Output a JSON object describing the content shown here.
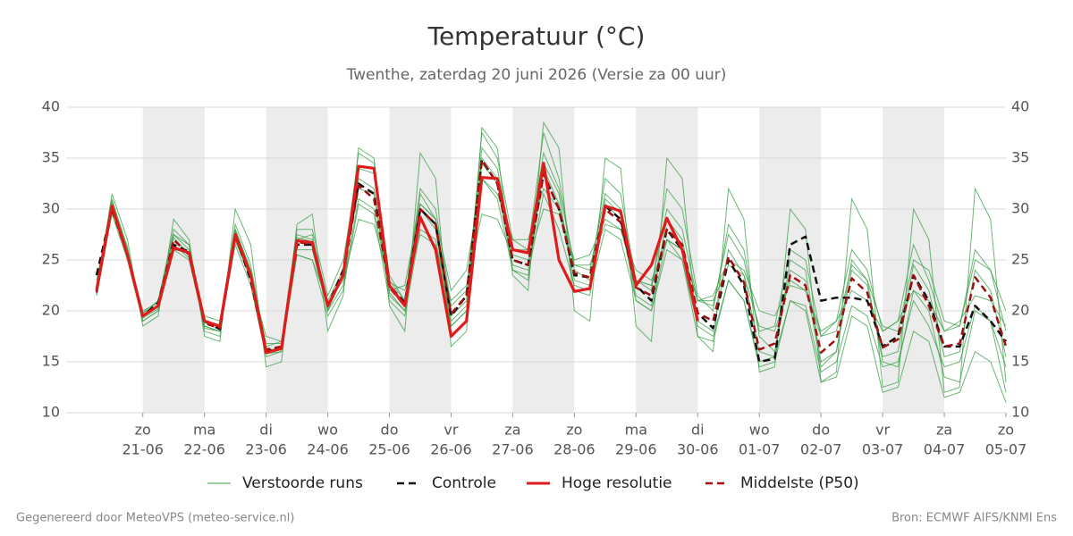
{
  "chart_data": {
    "type": "line",
    "title": "Temperatuur (°C)",
    "subtitle": "Twenthe, zaterdag 20 juni 2026 (Versie za 00 uur)",
    "categories": [
      null,
      null,
      null,
      {
        "day": "zo",
        "date": "21-06"
      },
      null,
      null,
      null,
      {
        "day": "ma",
        "date": "22-06"
      },
      null,
      null,
      null,
      {
        "day": "di",
        "date": "23-06"
      },
      null,
      null,
      null,
      {
        "day": "wo",
        "date": "24-06"
      },
      null,
      null,
      null,
      {
        "day": "do",
        "date": "25-06"
      },
      null,
      null,
      null,
      {
        "day": "vr",
        "date": "26-06"
      },
      null,
      null,
      null,
      {
        "day": "za",
        "date": "27-06"
      },
      null,
      null,
      null,
      {
        "day": "zo",
        "date": "28-06"
      },
      null,
      null,
      null,
      {
        "day": "ma",
        "date": "29-06"
      },
      null,
      null,
      null,
      {
        "day": "di",
        "date": "30-06"
      },
      null,
      null,
      null,
      {
        "day": "wo",
        "date": "01-07"
      },
      null,
      null,
      null,
      {
        "day": "do",
        "date": "02-07"
      },
      null,
      null,
      null,
      {
        "day": "vr",
        "date": "03-07"
      },
      null,
      null,
      null,
      {
        "day": "za",
        "date": "04-07"
      },
      null,
      null,
      null,
      {
        "day": "zo",
        "date": "05-07"
      }
    ],
    "ylim": [
      10,
      40
    ],
    "yticks": [
      10,
      15,
      20,
      25,
      30,
      35,
      40
    ],
    "grid": true,
    "ensemble": {
      "name": "Verstoorde runs",
      "color": "#3a9d48",
      "runs": [
        [
          22.5,
          31,
          26,
          19.8,
          21,
          28,
          26.5,
          19,
          18.5,
          28.5,
          24.5,
          16.5,
          17,
          28,
          28,
          21.5,
          25,
          34,
          33.5,
          23,
          21,
          32,
          30,
          20.5,
          22,
          36,
          34,
          26,
          26,
          35.5,
          32,
          24.5,
          24,
          31.5,
          30,
          23,
          22.5,
          30,
          28,
          21,
          20.5,
          27.5,
          25,
          18,
          18.5,
          26,
          25,
          17.5,
          19,
          26,
          24,
          18,
          19,
          26.5,
          23,
          18,
          18.5,
          26,
          24,
          18
        ],
        [
          21.5,
          29.5,
          25,
          19,
          20,
          26,
          25,
          18.5,
          18,
          26.5,
          22.5,
          15.5,
          16,
          25.5,
          25,
          19.5,
          22,
          30.5,
          29.5,
          21,
          19.5,
          28,
          27,
          18.5,
          20,
          33,
          31,
          24,
          23.5,
          31.5,
          28,
          22.5,
          22,
          28,
          27,
          21,
          20,
          26,
          25,
          18.5,
          17.5,
          23,
          21,
          15,
          15.5,
          21,
          20.5,
          14,
          15,
          20.5,
          19.5,
          14.5,
          15,
          21,
          18.5,
          14.5,
          15,
          20.5,
          19,
          14.5
        ],
        [
          23,
          30.5,
          26,
          19.5,
          21,
          27.5,
          26,
          18.5,
          18,
          28,
          24,
          16,
          16.5,
          27.5,
          27,
          21,
          24,
          35.5,
          34.5,
          23.5,
          21,
          31.5,
          29,
          19,
          20.5,
          37.5,
          35,
          27,
          26,
          37.5,
          33,
          24,
          23,
          33,
          31.5,
          23,
          22,
          32,
          30,
          21.5,
          20,
          28.5,
          26,
          17.5,
          16,
          24,
          23,
          14.5,
          16,
          25,
          23,
          15,
          14.5,
          22,
          20,
          13.5,
          13,
          20,
          19,
          12
        ],
        [
          22,
          30,
          25.3,
          20,
          20.8,
          26.5,
          25.2,
          19.5,
          19,
          27,
          23,
          17.5,
          17,
          26,
          26,
          20,
          22.5,
          31,
          30,
          22,
          22.5,
          30.5,
          29,
          22,
          24,
          33,
          31.5,
          27,
          27,
          32,
          30,
          25,
          25.5,
          29,
          28,
          24,
          23,
          27,
          26,
          21,
          21.5,
          25,
          24,
          20,
          19.5,
          22.5,
          22,
          18,
          19,
          22,
          21,
          18,
          19,
          22,
          21,
          18,
          19,
          21.5,
          21,
          18.5
        ],
        [
          21.8,
          31.5,
          27,
          18.5,
          19.5,
          29,
          27,
          17.5,
          17,
          30,
          26.5,
          14.5,
          15,
          28.5,
          29.5,
          18,
          21.5,
          36,
          35,
          20.5,
          18,
          35.5,
          33,
          16.5,
          18,
          38,
          36,
          23.5,
          22,
          38.5,
          36,
          20,
          19,
          35,
          34,
          18.5,
          17,
          35,
          33,
          17.5,
          16,
          32,
          29,
          14,
          14.5,
          30,
          28,
          13,
          14,
          31,
          28,
          12.5,
          13,
          30,
          27,
          12,
          12.5,
          32,
          29,
          13
        ],
        [
          22.3,
          29.8,
          25.5,
          19.8,
          20.5,
          26,
          25.8,
          18.8,
          18.6,
          26.8,
          23.8,
          16.8,
          16.8,
          25.5,
          25,
          20.8,
          23,
          29,
          28.5,
          22.8,
          22,
          27.5,
          26.5,
          21,
          22.5,
          29.5,
          29,
          25.5,
          25,
          30,
          29.5,
          24.5,
          24.5,
          28.5,
          28,
          23,
          22.5,
          27,
          26,
          21,
          21,
          24.5,
          23.5,
          18.5,
          18,
          23,
          22,
          17.5,
          18,
          24.5,
          23,
          18.5,
          18,
          25,
          24,
          19,
          18.5,
          25,
          24,
          20
        ],
        [
          22,
          30.3,
          25.8,
          19.3,
          20.2,
          27.2,
          25.6,
          18.3,
          18,
          27.8,
          23.3,
          15.8,
          16.2,
          27.2,
          26.8,
          20.2,
          23.8,
          33,
          32,
          21.8,
          20,
          30.5,
          29,
          19.5,
          21,
          35,
          33,
          24.5,
          24,
          34,
          30.5,
          23,
          22.5,
          31,
          29.5,
          21.5,
          20.5,
          29,
          27,
          19,
          18,
          26,
          23.5,
          16,
          15.5,
          25,
          24,
          15,
          16,
          24,
          22.5,
          15.5,
          16,
          24.5,
          22,
          15.5,
          16,
          24,
          22,
          15.5
        ],
        [
          21.6,
          30.8,
          26.3,
          19,
          20,
          27.5,
          26.5,
          18,
          17.5,
          28,
          24,
          15.8,
          16,
          27,
          27.5,
          20,
          23.5,
          32,
          31.5,
          21.5,
          20,
          30,
          28,
          18.5,
          20,
          34.5,
          32.5,
          24,
          23,
          34.5,
          31.5,
          22,
          21.5,
          30.5,
          29,
          21,
          20,
          27,
          25,
          17.5,
          17,
          23,
          21,
          14.5,
          15,
          21,
          20,
          13,
          13.5,
          19.5,
          18.5,
          12,
          12.5,
          18,
          17,
          11.5,
          12,
          16,
          15,
          11
        ]
      ]
    },
    "series": [
      {
        "name": "Controle",
        "color": "#111111",
        "style": "dashed",
        "values": [
          23.5,
          30,
          25.5,
          19.5,
          20.8,
          26.5,
          25.8,
          19,
          18.2,
          27.5,
          23,
          16,
          16.5,
          26.5,
          26.5,
          20.5,
          24,
          32.5,
          31.5,
          22.5,
          20.8,
          30,
          28.5,
          19.5,
          21.5,
          34.8,
          32.5,
          25,
          24.5,
          33.5,
          30,
          23.5,
          23.3,
          30.3,
          29,
          22.5,
          21,
          28,
          26,
          19.8,
          18.3,
          25,
          22.5,
          15,
          15.3,
          26.5,
          27.3,
          21,
          21.3,
          21.3,
          21,
          16.5,
          17.5,
          23.5,
          21,
          16.5,
          16.5,
          20.5,
          19,
          17
        ]
      },
      {
        "name": "Hoge resolutie",
        "color": "#e01b1b",
        "style": "solid",
        "values": [
          22,
          30.3,
          25.5,
          19.5,
          20.5,
          26.2,
          25.7,
          19,
          18.5,
          27.5,
          23.5,
          15.9,
          16.3,
          26.9,
          26.7,
          20.5,
          23.5,
          34.2,
          34,
          22.5,
          20.5,
          29.2,
          26,
          17.5,
          19,
          33.1,
          33,
          26,
          25.7,
          34.5,
          25,
          21.9,
          22.2,
          30.3,
          29.8,
          22.5,
          24.5,
          29.1,
          26,
          19,
          null,
          null,
          null,
          null,
          null,
          null,
          null,
          null,
          null,
          null,
          null,
          null,
          null,
          null,
          null,
          null,
          null,
          null,
          null,
          null
        ]
      },
      {
        "name": "Middelste (P50)",
        "color": "#a01010",
        "style": "dashed",
        "values": [
          21.8,
          30.3,
          25.5,
          19.5,
          20.5,
          27,
          25.5,
          18.8,
          18.3,
          27.3,
          23.5,
          16.2,
          16.5,
          26.8,
          26.5,
          20.5,
          23.5,
          32.3,
          31,
          22.3,
          20.5,
          30,
          28.5,
          19.7,
          21.5,
          34.8,
          32.5,
          25,
          24.5,
          33.5,
          30,
          23.7,
          23.3,
          30,
          28.7,
          22.3,
          21.5,
          28,
          26.5,
          19.8,
          19,
          25.3,
          22.8,
          16.2,
          16.8,
          23.5,
          22.5,
          15.9,
          17.2,
          23.2,
          21.8,
          16.4,
          17.2,
          23.5,
          20.5,
          16.5,
          16.8,
          23.3,
          21.3,
          16.5
        ]
      }
    ]
  },
  "footer": {
    "left": "Gegenereerd door MeteoVPS (meteo-service.nl)",
    "right": "Bron: ECMWF AIFS/KNMI Ens"
  }
}
